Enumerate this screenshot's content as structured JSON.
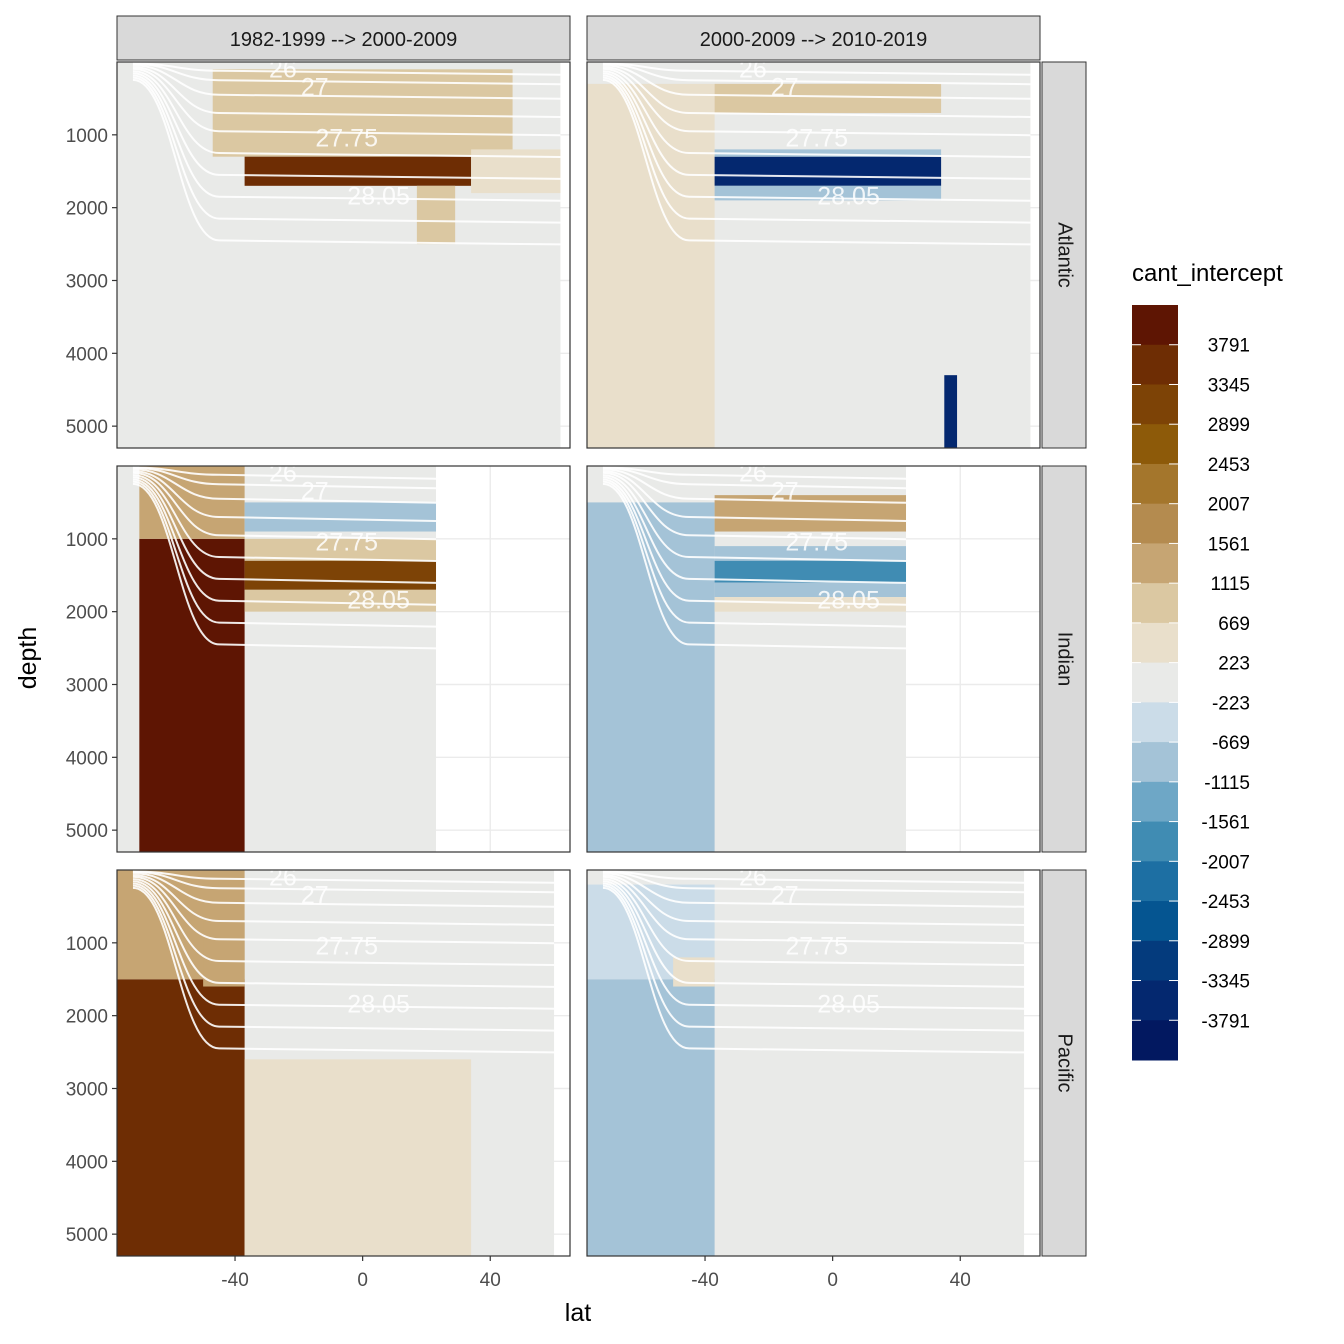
{
  "chart_data": {
    "type": "heatmap",
    "variable": "cant_intercept",
    "xlabel": "lat",
    "ylabel": "depth",
    "xlim": [
      -77,
      65
    ],
    "ylim": [
      5300,
      0
    ],
    "x_ticks": [
      -40,
      0,
      40
    ],
    "x_tick_labels": [
      "-40",
      "0",
      "40"
    ],
    "y_ticks": [
      1000,
      2000,
      3000,
      4000,
      5000
    ],
    "y_tick_labels": [
      "1000",
      "2000",
      "3000",
      "4000",
      "5000"
    ],
    "grid": true,
    "columns": [
      "1982-1999 --> 2000-2009",
      "2000-2009 --> 2010-2019"
    ],
    "rows": [
      "Atlantic",
      "Indian",
      "Pacific"
    ],
    "legend": {
      "title": "cant_intercept",
      "position": "right",
      "labels": [
        "3791",
        "3345",
        "2899",
        "2453",
        "2007",
        "1561",
        "1115",
        "669",
        "223",
        "-223",
        "-669",
        "-1115",
        "-1561",
        "-2007",
        "-2453",
        "-2899",
        "-3345",
        "-3791"
      ],
      "colors": [
        "#5e1503",
        "#6e2d04",
        "#7d4306",
        "#8d5a09",
        "#a4762c",
        "#b48b4f",
        "#c6a573",
        "#dbc8a2",
        "#e9dfcb",
        "#e9eae8",
        "#cbdce8",
        "#a4c3d7",
        "#6ea7c6",
        "#408cb3",
        "#1d6fa3",
        "#055591",
        "#043b7d",
        "#04286f",
        "#021860"
      ]
    },
    "density_contour_labels": [
      "26",
      "27",
      "27.75",
      "28.05"
    ],
    "panels": [
      {
        "column": 0,
        "row": 0,
        "regions": [
          {
            "lat": [
              -77,
              62
            ],
            "depth": [
              0,
              5300
            ],
            "value": 0
          },
          {
            "lat": [
              -37,
              62
            ],
            "depth": [
              3100,
              5300
            ],
            "value": -400
          },
          {
            "lat": [
              -57,
              -37
            ],
            "depth": [
              1700,
              2500
            ],
            "value": -300
          },
          {
            "lat": [
              -47,
              47
            ],
            "depth": [
              100,
              1300
            ],
            "value": 500
          },
          {
            "lat": [
              -37,
              34
            ],
            "depth": [
              1300,
              1700
            ],
            "value": 3500
          },
          {
            "lat": [
              17,
              29
            ],
            "depth": [
              1700,
              2500
            ],
            "value": 800
          },
          {
            "lat": [
              34,
              62
            ],
            "depth": [
              1200,
              1800
            ],
            "value": 400
          }
        ]
      },
      {
        "column": 1,
        "row": 0,
        "regions": [
          {
            "lat": [
              -77,
              62
            ],
            "depth": [
              0,
              5300
            ],
            "value": 0
          },
          {
            "lat": [
              -77,
              -37
            ],
            "depth": [
              300,
              5300
            ],
            "value": 400
          },
          {
            "lat": [
              -37,
              34
            ],
            "depth": [
              1300,
              1700
            ],
            "value": -3600
          },
          {
            "lat": [
              -37,
              34
            ],
            "depth": [
              1200,
              1300
            ],
            "value": -1100
          },
          {
            "lat": [
              -37,
              34
            ],
            "depth": [
              1700,
              1900
            ],
            "value": -1100
          },
          {
            "lat": [
              -37,
              34
            ],
            "depth": [
              300,
              700
            ],
            "value": 500
          },
          {
            "lat": [
              34,
              62
            ],
            "depth": [
              2400,
              2700
            ],
            "value": -400
          },
          {
            "lat": [
              35,
              39
            ],
            "depth": [
              4300,
              5300
            ],
            "value": -3700
          }
        ]
      },
      {
        "column": 0,
        "row": 1,
        "regions": [
          {
            "lat": [
              -77,
              23
            ],
            "depth": [
              0,
              5300
            ],
            "value": 0
          },
          {
            "lat": [
              -70,
              -37
            ],
            "depth": [
              1000,
              5300
            ],
            "value": 3600
          },
          {
            "lat": [
              -70,
              -37
            ],
            "depth": [
              0,
              1000
            ],
            "value": 1000
          },
          {
            "lat": [
              -37,
              23
            ],
            "depth": [
              500,
              900
            ],
            "value": -900
          },
          {
            "lat": [
              -37,
              23
            ],
            "depth": [
              1300,
              1700
            ],
            "value": 3100
          },
          {
            "lat": [
              -37,
              23
            ],
            "depth": [
              1000,
              1300
            ],
            "value": 800
          },
          {
            "lat": [
              -37,
              23
            ],
            "depth": [
              1700,
              2000
            ],
            "value": 600
          }
        ]
      },
      {
        "column": 1,
        "row": 1,
        "regions": [
          {
            "lat": [
              -77,
              23
            ],
            "depth": [
              0,
              5300
            ],
            "value": 0
          },
          {
            "lat": [
              -77,
              -37
            ],
            "depth": [
              500,
              5300
            ],
            "value": -1300
          },
          {
            "lat": [
              -37,
              23
            ],
            "depth": [
              400,
              900
            ],
            "value": 1200
          },
          {
            "lat": [
              -37,
              23
            ],
            "depth": [
              1300,
              1600
            ],
            "value": -2000
          },
          {
            "lat": [
              -37,
              23
            ],
            "depth": [
              1100,
              1300
            ],
            "value": -900
          },
          {
            "lat": [
              -37,
              23
            ],
            "depth": [
              1600,
              1800
            ],
            "value": -900
          },
          {
            "lat": [
              -37,
              23
            ],
            "depth": [
              1800,
              2000
            ],
            "value": 400
          }
        ]
      },
      {
        "column": 0,
        "row": 2,
        "regions": [
          {
            "lat": [
              -77,
              60
            ],
            "depth": [
              0,
              5300
            ],
            "value": 0
          },
          {
            "lat": [
              -77,
              -37
            ],
            "depth": [
              1500,
              5300
            ],
            "value": 3500
          },
          {
            "lat": [
              -77,
              -37
            ],
            "depth": [
              0,
              1500
            ],
            "value": 1200
          },
          {
            "lat": [
              -37,
              34
            ],
            "depth": [
              2600,
              5300
            ],
            "value": 400
          },
          {
            "lat": [
              -50,
              -37
            ],
            "depth": [
              700,
              1600
            ],
            "value": 900
          }
        ]
      },
      {
        "column": 1,
        "row": 2,
        "regions": [
          {
            "lat": [
              -77,
              60
            ],
            "depth": [
              0,
              5300
            ],
            "value": 0
          },
          {
            "lat": [
              -77,
              -37
            ],
            "depth": [
              1500,
              5300
            ],
            "value": -1300
          },
          {
            "lat": [
              -77,
              -37
            ],
            "depth": [
              200,
              1500
            ],
            "value": -500
          },
          {
            "lat": [
              -50,
              -37
            ],
            "depth": [
              1200,
              1600
            ],
            "value": 400
          }
        ]
      }
    ]
  }
}
